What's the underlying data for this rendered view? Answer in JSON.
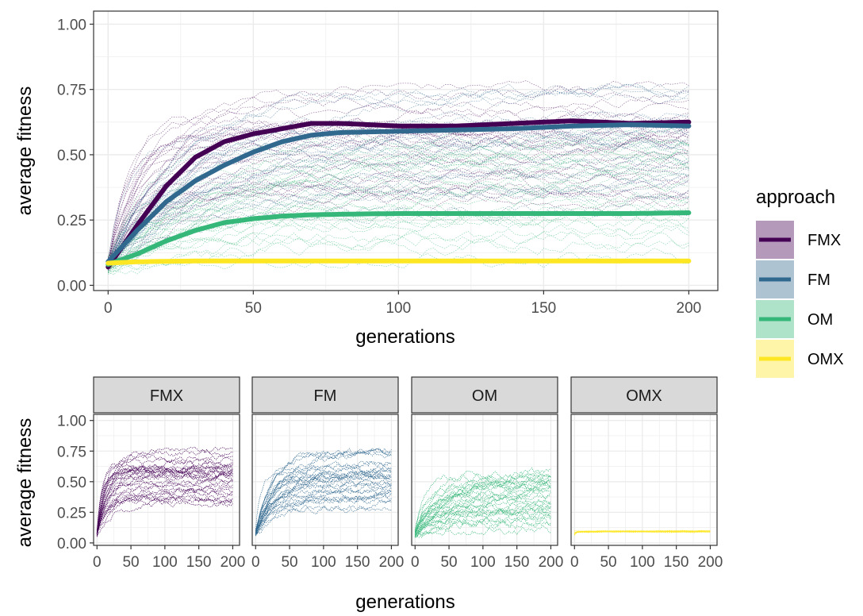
{
  "chart_data": [
    {
      "type": "line",
      "panel": "main",
      "xlabel": "generations",
      "ylabel": "average fitness",
      "xlim": [
        -5,
        210
      ],
      "ylim": [
        -0.02,
        1.05
      ],
      "x_ticks": [
        0,
        50,
        100,
        150,
        200
      ],
      "y_ticks": [
        0.0,
        0.25,
        0.5,
        0.75,
        1.0
      ],
      "y_tick_labels": [
        "0.00",
        "0.25",
        "0.50",
        "0.75",
        "1.00"
      ],
      "grid": true,
      "legend": {
        "title": "approach",
        "placement": "right",
        "entries": [
          "FMX",
          "FM",
          "OM",
          "OMX"
        ]
      },
      "series": [
        {
          "name": "FMX",
          "color": "#440154",
          "x": [
            0,
            10,
            20,
            30,
            40,
            50,
            60,
            70,
            80,
            100,
            120,
            140,
            160,
            180,
            200
          ],
          "values": [
            0.07,
            0.23,
            0.38,
            0.49,
            0.55,
            0.58,
            0.6,
            0.62,
            0.62,
            0.61,
            0.61,
            0.62,
            0.63,
            0.62,
            0.625
          ]
        },
        {
          "name": "FM",
          "color": "#31688E",
          "x": [
            0,
            10,
            20,
            30,
            40,
            50,
            60,
            70,
            80,
            100,
            120,
            140,
            160,
            180,
            200
          ],
          "values": [
            0.09,
            0.21,
            0.32,
            0.4,
            0.46,
            0.51,
            0.55,
            0.575,
            0.585,
            0.59,
            0.595,
            0.6,
            0.61,
            0.615,
            0.61
          ]
        },
        {
          "name": "OM",
          "color": "#35B779",
          "x": [
            0,
            10,
            20,
            30,
            40,
            50,
            60,
            70,
            80,
            100,
            120,
            140,
            160,
            180,
            200
          ],
          "values": [
            0.08,
            0.12,
            0.17,
            0.21,
            0.24,
            0.255,
            0.265,
            0.27,
            0.272,
            0.275,
            0.275,
            0.275,
            0.275,
            0.275,
            0.278
          ]
        },
        {
          "name": "OMX",
          "color": "#FDE725",
          "x": [
            0,
            10,
            20,
            30,
            40,
            50,
            60,
            70,
            80,
            100,
            120,
            140,
            160,
            180,
            200
          ],
          "values": [
            0.085,
            0.09,
            0.092,
            0.093,
            0.093,
            0.093,
            0.093,
            0.093,
            0.093,
            0.093,
            0.093,
            0.093,
            0.093,
            0.093,
            0.093
          ]
        }
      ]
    },
    {
      "type": "line",
      "panel": "facets",
      "xlabel": "generations",
      "ylabel": "average fitness",
      "xlim": [
        -5,
        210
      ],
      "ylim": [
        -0.02,
        1.05
      ],
      "x_ticks": [
        0,
        50,
        100,
        150,
        200
      ],
      "y_ticks": [
        0.0,
        0.25,
        0.5,
        0.75,
        1.0
      ],
      "y_tick_labels": [
        "0.00",
        "0.25",
        "0.50",
        "0.75",
        "1.00"
      ],
      "grid": true,
      "facets": [
        {
          "strip": "FMX",
          "color": "#440154",
          "plateau_range": [
            0.3,
            0.78
          ],
          "rise_generations": 12
        },
        {
          "strip": "FM",
          "color": "#31688E",
          "plateau_range": [
            0.25,
            0.78
          ],
          "rise_generations": 15
        },
        {
          "strip": "OM",
          "color": "#35B779",
          "plateau_range": [
            0.08,
            0.6
          ],
          "rise_generations": 30
        },
        {
          "strip": "OMX",
          "color": "#FDE725",
          "plateau_range": [
            0.085,
            0.1
          ],
          "rise_generations": 3
        }
      ]
    }
  ]
}
